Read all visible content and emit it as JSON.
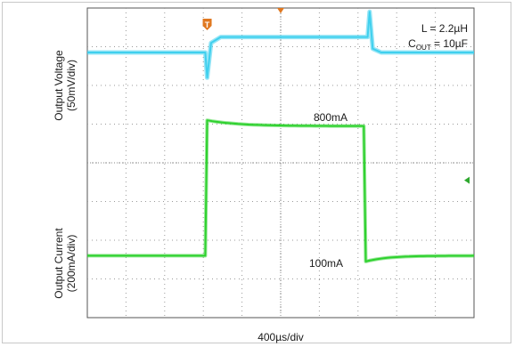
{
  "chart_data": {
    "type": "line",
    "title": "",
    "xlabel": "400µs/div",
    "x_divisions": 10,
    "y_divisions": 8,
    "grid": true,
    "annotations": {
      "inductor": "L = 2.2µH",
      "cout_prefix": "C",
      "cout_sub": "OUT",
      "cout_value": " = 10µF",
      "high_current": "800mA",
      "low_current": "100mA"
    },
    "channels": [
      {
        "name": "Output Voltage",
        "ylabel": "Output Voltage",
        "scale": "(50mV/div)",
        "color": "#3fd0ee",
        "baseline_div": 6.85,
        "step_up_at_div": 3.1,
        "step_down_at_div": 7.3,
        "dip_div": 6.2,
        "high_div": 7.25,
        "spike_div": 7.9
      },
      {
        "name": "Output Current",
        "ylabel": "Output Current",
        "scale": "(200mA/div)",
        "color": "#2ed12e",
        "low_div": 1.6,
        "high_div": 5.1,
        "settle_div": 4.95,
        "rise_at_div": 3.05,
        "fall_at_div": 7.15
      }
    ],
    "markers": [
      {
        "name": "trigger-marker",
        "label": "T",
        "color": "#e07820",
        "x_div": 3.1
      },
      {
        "name": "position-marker",
        "color": "#e07820",
        "x_div": 5.0
      },
      {
        "name": "level-marker",
        "color": "#2ea82e",
        "y_div": 3.55
      }
    ]
  }
}
